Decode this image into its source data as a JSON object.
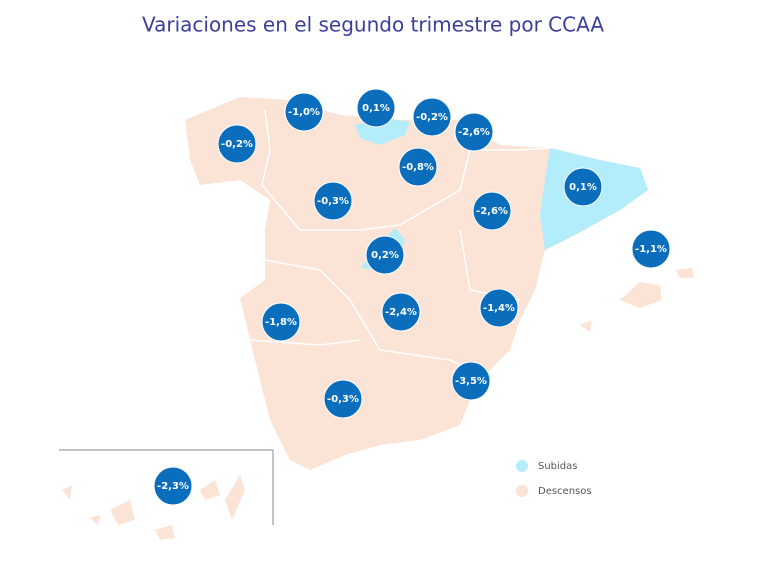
{
  "title": "Variaciones en el segundo trimestre por CCAA",
  "bubbles": [
    "-1,0%",
    "0,1%",
    "-0,2%",
    "-2,6%",
    "-0,2%",
    "-0,8%",
    "0,1%",
    "-0,3%",
    "-2,6%",
    "-1,1%",
    "0,2%",
    "-1,8%",
    "-2,4%",
    "-1,4%",
    "-3,5%",
    "-0,3%",
    "-2,3%"
  ],
  "legend": [
    "Subidas",
    "Descensos"
  ]
}
